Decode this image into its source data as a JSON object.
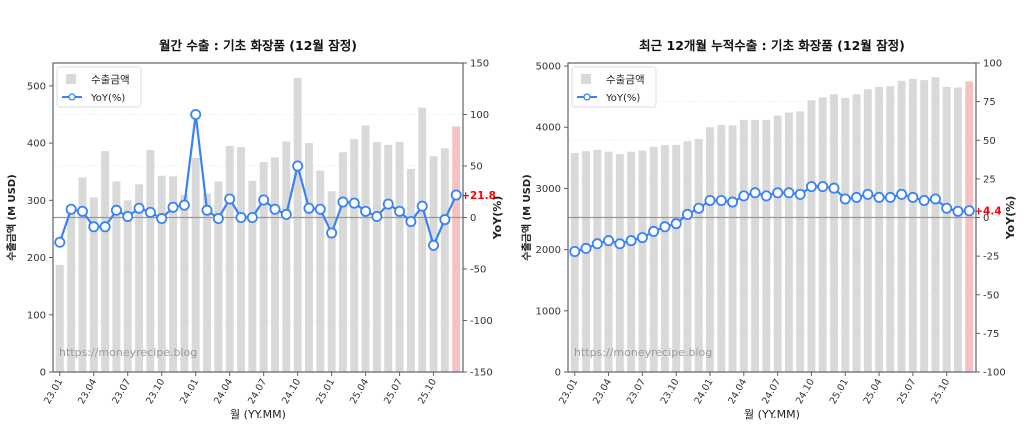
{
  "chart_data": [
    {
      "type": "bar",
      "title": "월간 수출 : 기초 화장품 (12월 잠정)",
      "xlabel": "월 (YY.MM)",
      "ylabel": "수출금액 (M USD)",
      "y2label": "YoY(%)",
      "ylim": [
        0,
        540
      ],
      "y2lim": [
        -150,
        150
      ],
      "yticks": [
        0,
        100,
        200,
        300,
        400,
        500
      ],
      "y2ticks": [
        -150,
        -100,
        -50,
        0,
        50,
        100,
        150
      ],
      "grid": true,
      "legend_position": "upper left",
      "legend": [
        "수출금액",
        "YoY(%)"
      ],
      "annotation": "+21.8",
      "watermark": "https://moneyrecipe.blog",
      "xticklabels": [
        "23.01",
        "23.04",
        "23.07",
        "23.10",
        "24.01",
        "24.04",
        "24.07",
        "24.10",
        "25.01",
        "25.04",
        "25.07",
        "25.10"
      ],
      "categories": [
        "23.01",
        "23.02",
        "23.03",
        "23.04",
        "23.05",
        "23.06",
        "23.07",
        "23.08",
        "23.09",
        "23.10",
        "23.11",
        "23.12",
        "24.01",
        "24.02",
        "24.03",
        "24.04",
        "24.05",
        "24.06",
        "24.07",
        "24.08",
        "24.09",
        "24.10",
        "24.11",
        "24.12",
        "25.01",
        "25.02",
        "25.03",
        "25.04",
        "25.05",
        "25.06",
        "25.07",
        "25.08",
        "25.09",
        "25.10",
        "25.11",
        "25.12"
      ],
      "series": [
        {
          "name": "수출금액",
          "type": "bar",
          "axis": "left",
          "values": [
            187,
            285,
            340,
            305,
            386,
            333,
            300,
            328,
            388,
            343,
            342,
            310,
            374,
            312,
            333,
            395,
            393,
            334,
            367,
            375,
            403,
            514,
            400,
            352,
            316,
            384,
            407,
            431,
            402,
            397,
            402,
            355,
            462,
            377,
            391,
            429
          ]
        },
        {
          "name": "YoY(%)",
          "type": "line",
          "axis": "right",
          "values": [
            -24,
            8,
            6,
            -9,
            -9,
            7,
            1,
            9,
            5,
            -1,
            10,
            12,
            100,
            7,
            -1,
            18,
            0,
            0,
            17,
            8,
            3,
            50,
            9,
            8,
            -15,
            15,
            14,
            6,
            1,
            13,
            6,
            -4,
            11,
            -27,
            -2,
            21.8
          ]
        }
      ]
    },
    {
      "type": "bar",
      "title": "최근 12개월 누적수출 : 기초 화장품 (12월 잠정)",
      "xlabel": "월 (YY.MM)",
      "ylabel": "수출금액 (M USD)",
      "y2label": "YoY(%)",
      "ylim": [
        0,
        5050
      ],
      "y2lim": [
        -100,
        100
      ],
      "yticks": [
        0,
        1000,
        2000,
        3000,
        4000,
        5000
      ],
      "y2ticks": [
        -100,
        -75,
        -50,
        -25,
        0,
        25,
        50,
        75,
        100
      ],
      "grid": true,
      "legend_position": "upper left",
      "legend": [
        "수출금액",
        "YoY(%)"
      ],
      "annotation": "+4.4",
      "watermark": "https://moneyrecipe.blog",
      "xticklabels": [
        "23.01",
        "23.04",
        "23.07",
        "23.10",
        "24.01",
        "24.04",
        "24.07",
        "24.10",
        "25.01",
        "25.04",
        "25.07",
        "25.10"
      ],
      "categories": [
        "23.01",
        "23.02",
        "23.03",
        "23.04",
        "23.05",
        "23.06",
        "23.07",
        "23.08",
        "23.09",
        "23.10",
        "23.11",
        "23.12",
        "24.01",
        "24.02",
        "24.03",
        "24.04",
        "24.05",
        "24.06",
        "24.07",
        "24.08",
        "24.09",
        "24.10",
        "24.11",
        "24.12",
        "25.01",
        "25.02",
        "25.03",
        "25.04",
        "25.05",
        "25.06",
        "25.07",
        "25.08",
        "25.09",
        "25.10",
        "25.11",
        "25.12"
      ],
      "series": [
        {
          "name": "수출금액",
          "type": "bar",
          "axis": "left",
          "values": [
            3580,
            3610,
            3630,
            3600,
            3560,
            3600,
            3620,
            3680,
            3710,
            3710,
            3770,
            3810,
            4000,
            4040,
            4030,
            4120,
            4120,
            4120,
            4190,
            4240,
            4260,
            4440,
            4490,
            4540,
            4480,
            4540,
            4620,
            4660,
            4670,
            4760,
            4790,
            4770,
            4820,
            4660,
            4650,
            4750
          ]
        },
        {
          "name": "YoY(%)",
          "type": "line",
          "axis": "right",
          "values": [
            -22,
            -20,
            -17,
            -15,
            -17,
            -15,
            -13,
            -9,
            -6,
            -4,
            2,
            6,
            11,
            11,
            10,
            14,
            16,
            14,
            16,
            16,
            15,
            20,
            20,
            19,
            12,
            13,
            15,
            13,
            13,
            15,
            13,
            11,
            12,
            6,
            4,
            4.4
          ]
        }
      ]
    }
  ],
  "colors": {
    "bar": "#d9d9d9",
    "bar_highlight": "#f4c2c2",
    "line": "#3b82f6",
    "annotation": "#ff0000",
    "zero_line": "#999999",
    "axis": "#5a6270",
    "watermark": "#9a9a9a"
  }
}
